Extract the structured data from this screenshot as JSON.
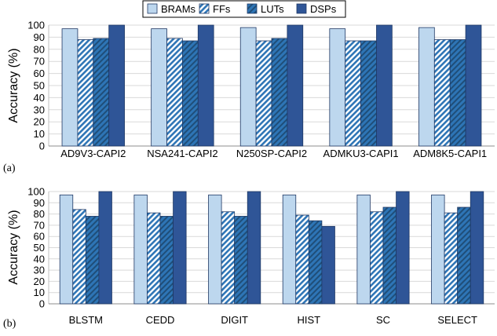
{
  "colors": {
    "BRAMs": "#bdd7ee",
    "FFs_stripe": "#2e75b6",
    "LUTs_bg": "#2e75b6",
    "LUTs_stripe": "#1f4e79",
    "DSPs": "#2f5597",
    "stroke": "#1f3864"
  },
  "legend": {
    "items": [
      {
        "name": "BRAMs",
        "pattern": "solid-light"
      },
      {
        "name": "FFs",
        "pattern": "hatch-light"
      },
      {
        "name": "LUTs",
        "pattern": "hatch-dark"
      },
      {
        "name": "DSPs",
        "pattern": "solid-dark"
      }
    ]
  },
  "chart_data": [
    {
      "type": "bar",
      "panel_label": "(a)",
      "ylabel": "Accuracy (%)",
      "ylim": [
        0,
        100
      ],
      "yticks": [
        0,
        10,
        20,
        30,
        40,
        50,
        60,
        70,
        80,
        90,
        100
      ],
      "grid": true,
      "categories": [
        "AD9V3-CAPI2",
        "NSA241-CAPI2",
        "N250SP-CAPI2",
        "ADMKU3-CAPI1",
        "ADM8K5-CAPI1"
      ],
      "series": [
        {
          "name": "BRAMs",
          "values": [
            97,
            97,
            98,
            97,
            98
          ]
        },
        {
          "name": "FFs",
          "values": [
            88,
            89,
            87,
            87,
            88
          ]
        },
        {
          "name": "LUTs",
          "values": [
            89,
            87,
            89,
            87,
            88
          ]
        },
        {
          "name": "DSPs",
          "values": [
            100,
            100,
            100,
            100,
            100
          ]
        }
      ]
    },
    {
      "type": "bar",
      "panel_label": "(b)",
      "ylabel": "Accuracy (%)",
      "ylim": [
        0,
        100
      ],
      "yticks": [
        0,
        10,
        20,
        30,
        40,
        50,
        60,
        70,
        80,
        90,
        100
      ],
      "grid": true,
      "categories": [
        "BLSTM",
        "CEDD",
        "DIGIT",
        "HIST",
        "SC",
        "SELECT"
      ],
      "series": [
        {
          "name": "BRAMs",
          "values": [
            97,
            97,
            97,
            97,
            97,
            97
          ]
        },
        {
          "name": "FFs",
          "values": [
            84,
            81,
            82,
            79,
            82,
            81
          ]
        },
        {
          "name": "LUTs",
          "values": [
            78,
            78,
            78,
            74,
            86,
            86
          ]
        },
        {
          "name": "DSPs",
          "values": [
            100,
            100,
            100,
            69,
            100,
            100
          ]
        }
      ]
    }
  ]
}
